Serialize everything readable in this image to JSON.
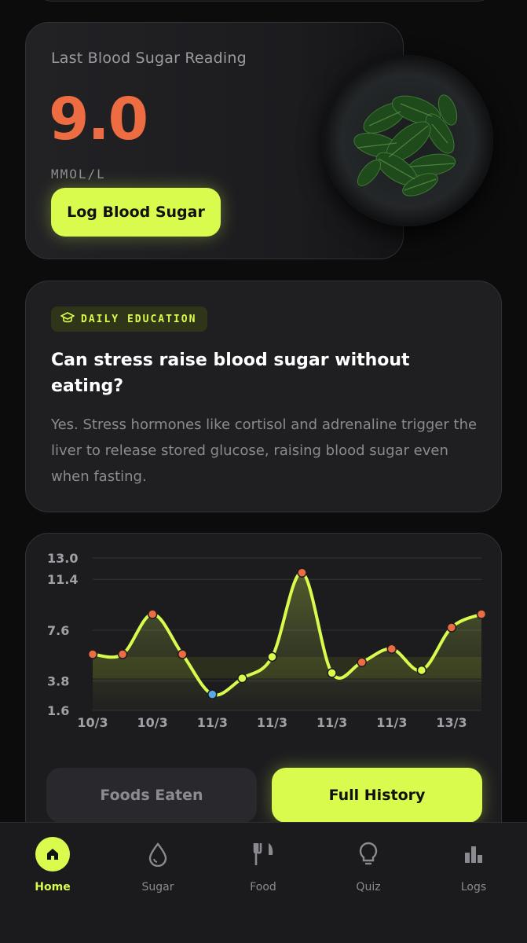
{
  "reading": {
    "label": "Last Blood Sugar Reading",
    "value": "9.0",
    "unit": "MMOL/L",
    "log_button": "Log Blood Sugar",
    "image_icon": "spinach-bowl-image"
  },
  "education": {
    "badge": "DAILY EDUCATION",
    "badge_icon": "graduation-cap-icon",
    "title": "Can stress raise blood sugar without eating?",
    "body": "Yes. Stress hormones like cortisol and adrenaline trigger the liver to release stored glucose, raising blood sugar even when fasting."
  },
  "chart_data": {
    "type": "line",
    "y_ticks": [
      "13.0",
      "11.4",
      "7.6",
      "3.8",
      "1.6"
    ],
    "x_ticks": [
      "10/3",
      "10/3",
      "11/3",
      "11/3",
      "11/3",
      "11/3",
      "13/3"
    ],
    "ylim": [
      1.6,
      13.0
    ],
    "y_values": [
      5.8,
      5.8,
      8.8,
      5.8,
      2.8,
      4.0,
      5.6,
      11.9,
      4.4,
      5.2,
      6.2,
      4.6,
      7.8,
      8.8
    ],
    "target_range": [
      4.0,
      5.6
    ],
    "colors": {
      "line": "#d8fb4d",
      "high": "#ee6c41",
      "normal": "#d8fb4d",
      "low": "#5aa9e6"
    },
    "grid": true
  },
  "actions": {
    "foods": "Foods Eaten",
    "history": "Full History"
  },
  "tabs": [
    {
      "label": "Home",
      "icon": "home-icon"
    },
    {
      "label": "Sugar",
      "icon": "drop-icon"
    },
    {
      "label": "Food",
      "icon": "fork-knife-icon"
    },
    {
      "label": "Quiz",
      "icon": "lightbulb-icon"
    },
    {
      "label": "Logs",
      "icon": "bar-chart-icon"
    }
  ]
}
